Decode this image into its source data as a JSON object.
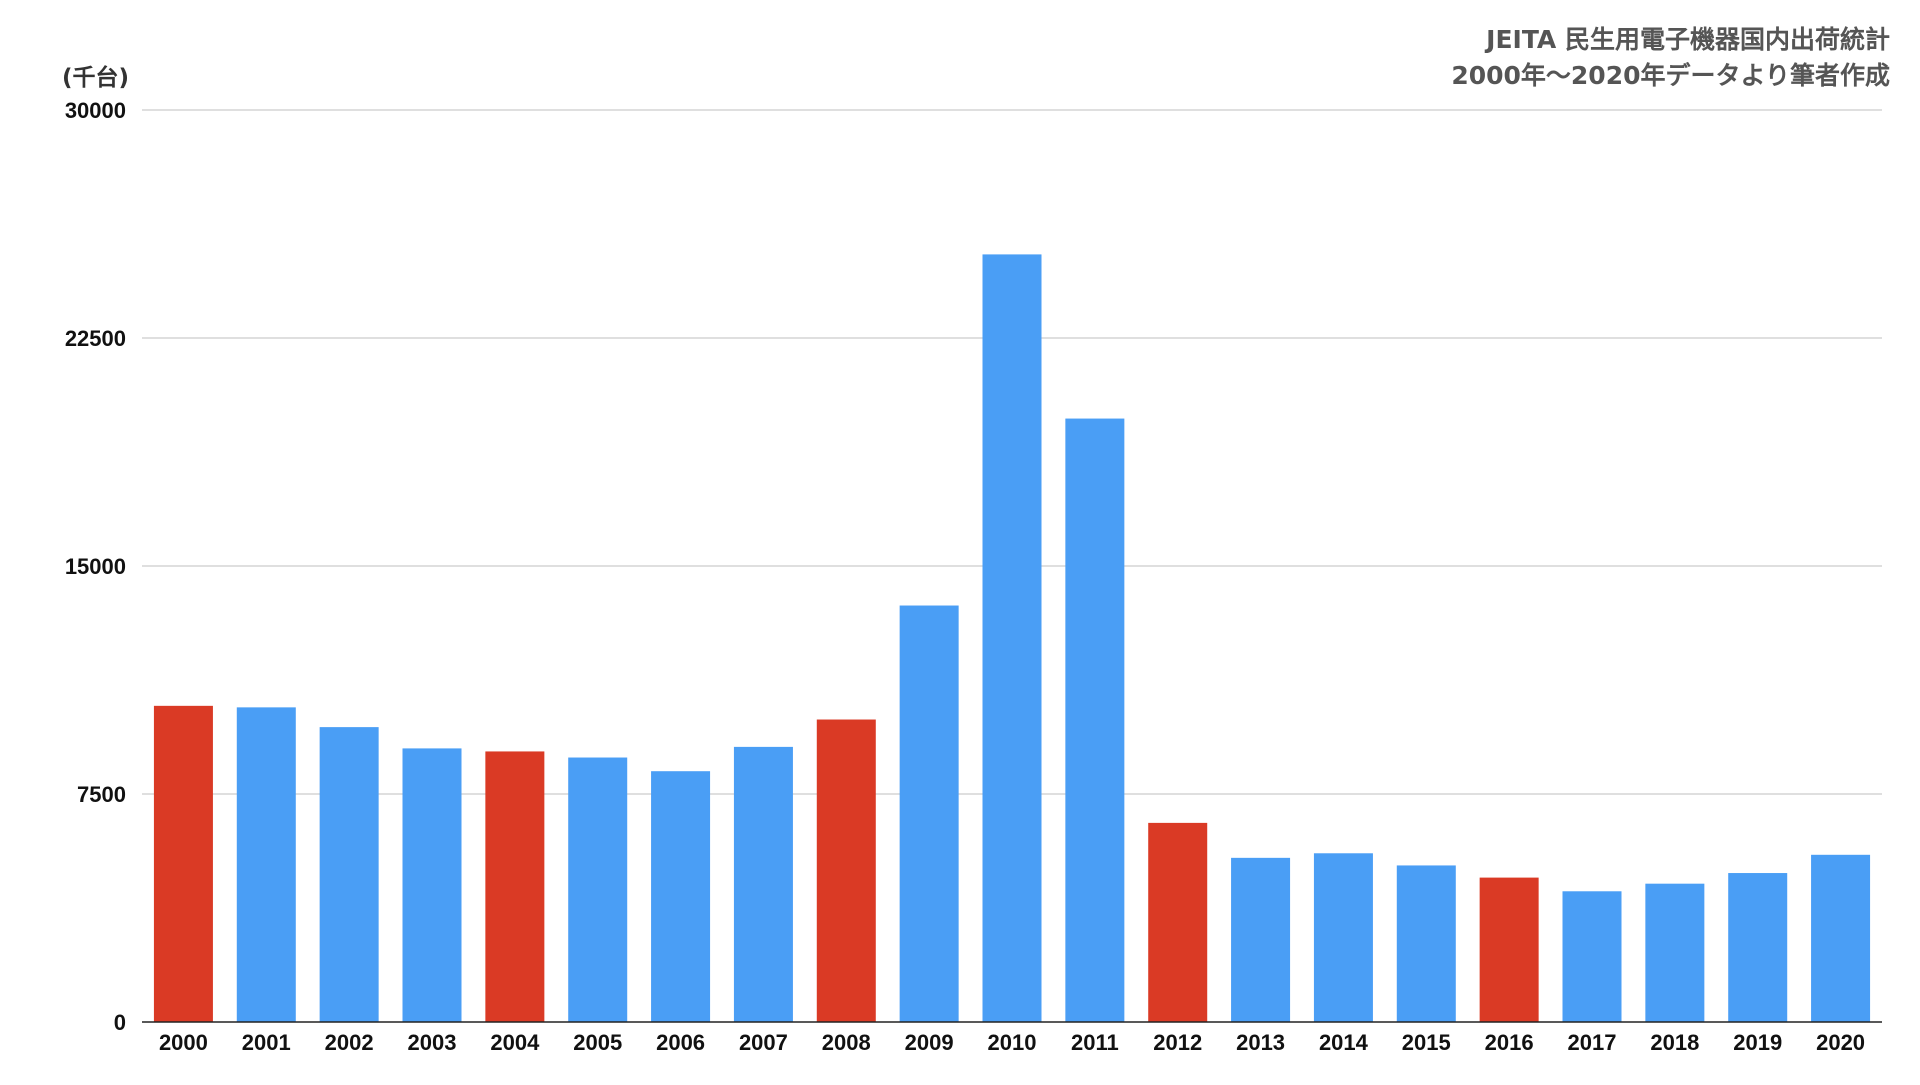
{
  "chart_data": {
    "type": "bar",
    "source_note_lines": [
      "JEITA 民生用電子機器国内出荷統計",
      "2000年〜2020年データより筆者作成"
    ],
    "unit_label": "(千台)",
    "categories": [
      "2000",
      "2001",
      "2002",
      "2003",
      "2004",
      "2005",
      "2006",
      "2007",
      "2008",
      "2009",
      "2010",
      "2011",
      "2012",
      "2013",
      "2014",
      "2015",
      "2016",
      "2017",
      "2018",
      "2019",
      "2020"
    ],
    "values": [
      10400,
      10350,
      9700,
      9000,
      8900,
      8700,
      8250,
      9050,
      9950,
      13700,
      25250,
      19850,
      6550,
      5400,
      5550,
      5150,
      4750,
      4300,
      4550,
      4900,
      5500
    ],
    "highlight_categories": [
      "2000",
      "2004",
      "2008",
      "2012",
      "2016"
    ],
    "colors": {
      "default_bar": "#4A9EF5",
      "highlight_bar": "#DA3A25",
      "gridline": "#CCCCCC",
      "axis": "#222222"
    },
    "ylim": [
      0,
      30000
    ],
    "yticks": [
      "0",
      "7500",
      "15000",
      "22500",
      "30000"
    ],
    "grid": true,
    "legend": "none"
  }
}
